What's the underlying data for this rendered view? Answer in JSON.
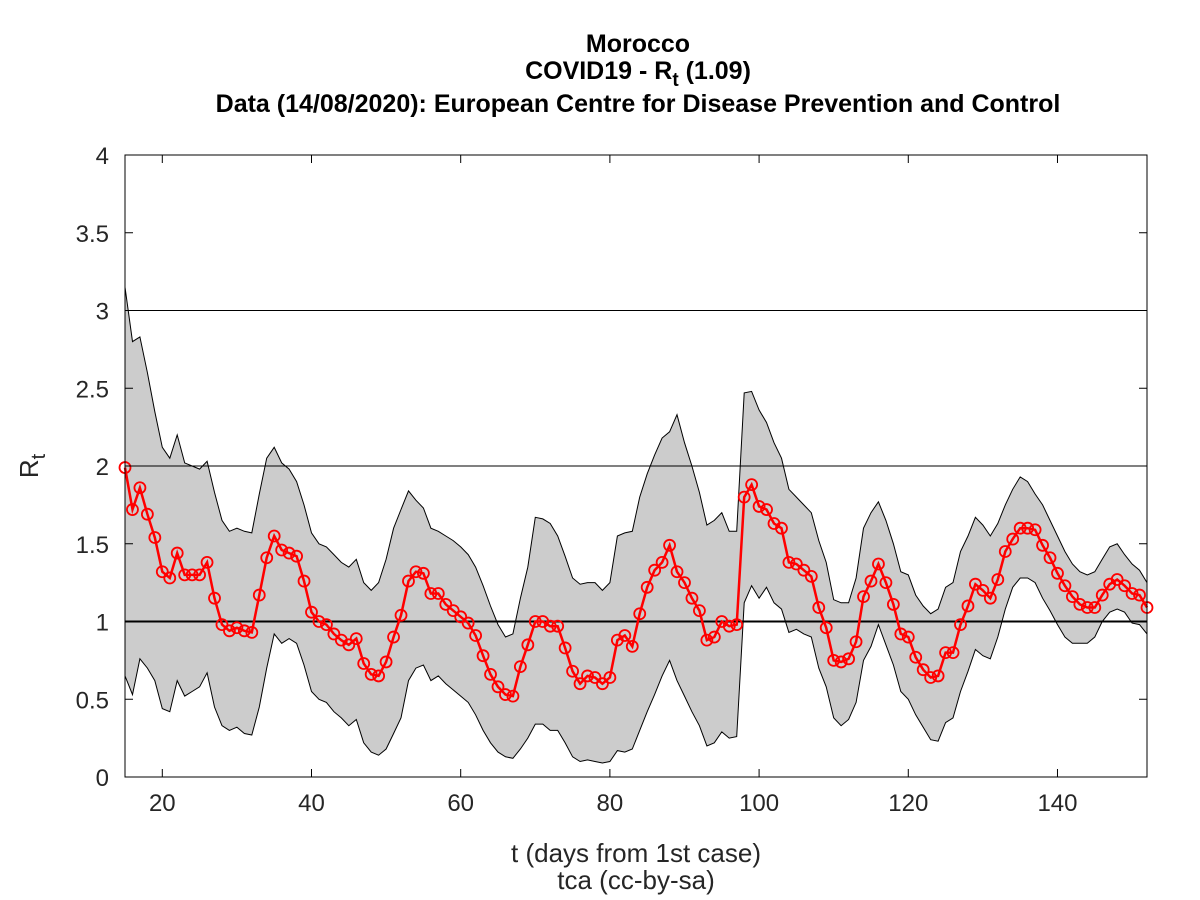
{
  "chart_data": {
    "type": "line",
    "title": {
      "line1": "Morocco",
      "line2_pre": "COVID19 - R",
      "line2_sub": "t",
      "line2_post": " (1.09)",
      "line3": "Data (14/08/2020): European Centre for Disease Prevention and Control"
    },
    "xlabel": "t (days from 1st case)",
    "ylabel": "R",
    "ylabel_sub": "t",
    "credit": "tca (cc-by-sa)",
    "xlim": [
      15,
      152
    ],
    "ylim": [
      0,
      4
    ],
    "xticks": [
      20,
      40,
      60,
      80,
      100,
      120,
      140
    ],
    "yticks": [
      0,
      0.5,
      1,
      1.5,
      2,
      2.5,
      3,
      3.5,
      4
    ],
    "ytick_labels": [
      "0",
      "0.5",
      "1",
      "1.5",
      "2",
      "2.5",
      "3",
      "3.5",
      "4"
    ],
    "reference_lines": [
      1,
      2,
      3
    ],
    "grid": false,
    "colors": {
      "series": "#ff0000",
      "band": "#cccccc",
      "band_edge": "#000000"
    },
    "series": [
      {
        "marker": "circle",
        "x": [
          15,
          16,
          17,
          18,
          19,
          20,
          21,
          22,
          23,
          24,
          25,
          26,
          27,
          28,
          29,
          30,
          31,
          32,
          33,
          34,
          35,
          36,
          37,
          38,
          39,
          40,
          41,
          42,
          43,
          44,
          45,
          46,
          47,
          48,
          49,
          50,
          51,
          52,
          53,
          54,
          55,
          56,
          57,
          58,
          59,
          60,
          61,
          62,
          63,
          64,
          65,
          66,
          67,
          68,
          69,
          70,
          71,
          72,
          73,
          74,
          75,
          76,
          77,
          78,
          79,
          80,
          81,
          82,
          83,
          84,
          85,
          86,
          87,
          88,
          89,
          90,
          91,
          92,
          93,
          94,
          95,
          96,
          97,
          98,
          99,
          100,
          101,
          102,
          103,
          104,
          105,
          106,
          107,
          108,
          109,
          110,
          111,
          112,
          113,
          114,
          115,
          116,
          117,
          118,
          119,
          120,
          121,
          122,
          123,
          124,
          125,
          126,
          127,
          128,
          129,
          130,
          131,
          132,
          133,
          134,
          135,
          136,
          137,
          138,
          139,
          140,
          141,
          142,
          143,
          144,
          145,
          146,
          147,
          148,
          149,
          150,
          151,
          152
        ],
        "y": [
          1.99,
          1.72,
          1.86,
          1.69,
          1.54,
          1.32,
          1.28,
          1.44,
          1.3,
          1.3,
          1.3,
          1.38,
          1.15,
          0.98,
          0.94,
          0.96,
          0.94,
          0.93,
          1.17,
          1.41,
          1.55,
          1.46,
          1.44,
          1.42,
          1.26,
          1.06,
          1.0,
          0.98,
          0.92,
          0.88,
          0.85,
          0.89,
          0.73,
          0.66,
          0.65,
          0.74,
          0.9,
          1.04,
          1.26,
          1.32,
          1.31,
          1.18,
          1.18,
          1.11,
          1.07,
          1.03,
          0.99,
          0.91,
          0.78,
          0.66,
          0.58,
          0.53,
          0.52,
          0.71,
          0.85,
          1.0,
          1.0,
          0.97,
          0.97,
          0.83,
          0.68,
          0.6,
          0.65,
          0.64,
          0.6,
          0.64,
          0.88,
          0.91,
          0.84,
          1.05,
          1.22,
          1.33,
          1.38,
          1.49,
          1.32,
          1.25,
          1.15,
          1.07,
          0.88,
          0.9,
          1.0,
          0.97,
          0.98,
          1.8,
          1.88,
          1.74,
          1.72,
          1.63,
          1.6,
          1.38,
          1.37,
          1.33,
          1.29,
          1.09,
          0.96,
          0.75,
          0.74,
          0.76,
          0.87,
          1.16,
          1.26,
          1.37,
          1.25,
          1.11,
          0.92,
          0.9,
          0.77,
          0.69,
          0.64,
          0.65,
          0.8,
          0.8,
          0.98,
          1.1,
          1.24,
          1.2,
          1.15,
          1.27,
          1.45,
          1.53,
          1.6,
          1.6,
          1.59,
          1.49,
          1.41,
          1.31,
          1.23,
          1.16,
          1.11,
          1.09,
          1.09,
          1.17,
          1.24,
          1.27,
          1.23,
          1.18,
          1.17,
          1.09
        ]
      }
    ],
    "band": {
      "upper": [
        3.15,
        2.8,
        2.83,
        2.6,
        2.35,
        2.12,
        2.05,
        2.2,
        2.02,
        2.0,
        1.98,
        2.03,
        1.83,
        1.65,
        1.58,
        1.6,
        1.58,
        1.57,
        1.82,
        2.05,
        2.12,
        2.02,
        1.98,
        1.9,
        1.75,
        1.57,
        1.5,
        1.48,
        1.43,
        1.38,
        1.35,
        1.4,
        1.25,
        1.2,
        1.25,
        1.4,
        1.6,
        1.72,
        1.84,
        1.78,
        1.73,
        1.6,
        1.58,
        1.55,
        1.52,
        1.48,
        1.43,
        1.35,
        1.23,
        1.1,
        0.98,
        0.9,
        0.92,
        1.15,
        1.35,
        1.67,
        1.66,
        1.63,
        1.55,
        1.42,
        1.28,
        1.24,
        1.25,
        1.25,
        1.2,
        1.25,
        1.55,
        1.57,
        1.58,
        1.8,
        1.95,
        2.07,
        2.18,
        2.22,
        2.33,
        2.15,
        2.0,
        1.83,
        1.62,
        1.65,
        1.7,
        1.58,
        1.58,
        2.47,
        2.48,
        2.36,
        2.28,
        2.15,
        2.05,
        1.85,
        1.8,
        1.75,
        1.7,
        1.52,
        1.38,
        1.14,
        1.12,
        1.12,
        1.28,
        1.6,
        1.7,
        1.77,
        1.65,
        1.5,
        1.32,
        1.3,
        1.17,
        1.1,
        1.05,
        1.08,
        1.22,
        1.25,
        1.45,
        1.55,
        1.67,
        1.62,
        1.55,
        1.63,
        1.75,
        1.85,
        1.93,
        1.9,
        1.82,
        1.75,
        1.65,
        1.55,
        1.45,
        1.37,
        1.32,
        1.3,
        1.32,
        1.4,
        1.48,
        1.5,
        1.43,
        1.37,
        1.33,
        1.25
      ],
      "lower": [
        0.65,
        0.53,
        0.76,
        0.7,
        0.62,
        0.44,
        0.42,
        0.62,
        0.52,
        0.55,
        0.58,
        0.67,
        0.45,
        0.33,
        0.3,
        0.32,
        0.28,
        0.27,
        0.45,
        0.7,
        0.92,
        0.86,
        0.89,
        0.86,
        0.72,
        0.55,
        0.5,
        0.48,
        0.42,
        0.38,
        0.33,
        0.37,
        0.22,
        0.16,
        0.14,
        0.18,
        0.28,
        0.38,
        0.62,
        0.7,
        0.72,
        0.62,
        0.65,
        0.6,
        0.56,
        0.52,
        0.48,
        0.4,
        0.3,
        0.22,
        0.16,
        0.13,
        0.12,
        0.18,
        0.25,
        0.34,
        0.34,
        0.3,
        0.3,
        0.22,
        0.13,
        0.1,
        0.11,
        0.1,
        0.09,
        0.1,
        0.17,
        0.16,
        0.18,
        0.3,
        0.42,
        0.53,
        0.65,
        0.75,
        0.62,
        0.52,
        0.42,
        0.33,
        0.2,
        0.22,
        0.29,
        0.25,
        0.26,
        1.12,
        1.23,
        1.15,
        1.22,
        1.12,
        1.08,
        0.93,
        0.95,
        0.92,
        0.9,
        0.7,
        0.58,
        0.38,
        0.33,
        0.37,
        0.48,
        0.75,
        0.84,
        0.98,
        0.85,
        0.72,
        0.55,
        0.5,
        0.4,
        0.32,
        0.24,
        0.23,
        0.35,
        0.38,
        0.55,
        0.68,
        0.82,
        0.78,
        0.76,
        0.9,
        1.08,
        1.22,
        1.28,
        1.28,
        1.25,
        1.15,
        1.07,
        0.98,
        0.9,
        0.86,
        0.86,
        0.86,
        0.9,
        1.0,
        1.06,
        1.08,
        1.06,
        0.99,
        0.98,
        0.92
      ]
    }
  }
}
